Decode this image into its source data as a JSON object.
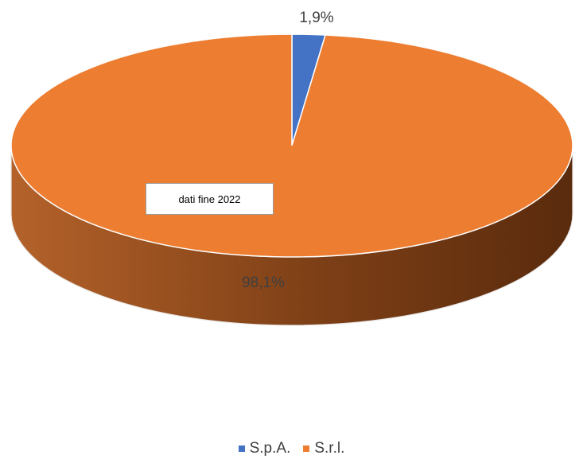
{
  "chart_data": {
    "type": "pie",
    "style": "3d",
    "labels": [
      "S.p.A.",
      "S.r.l."
    ],
    "values": [
      1.9,
      98.1
    ],
    "data_labels": [
      "1,9%",
      "98,1%"
    ],
    "colors": [
      "#4472C4",
      "#ED7D31"
    ],
    "legend_position": "bottom",
    "annotation": "dati fine 2022"
  }
}
